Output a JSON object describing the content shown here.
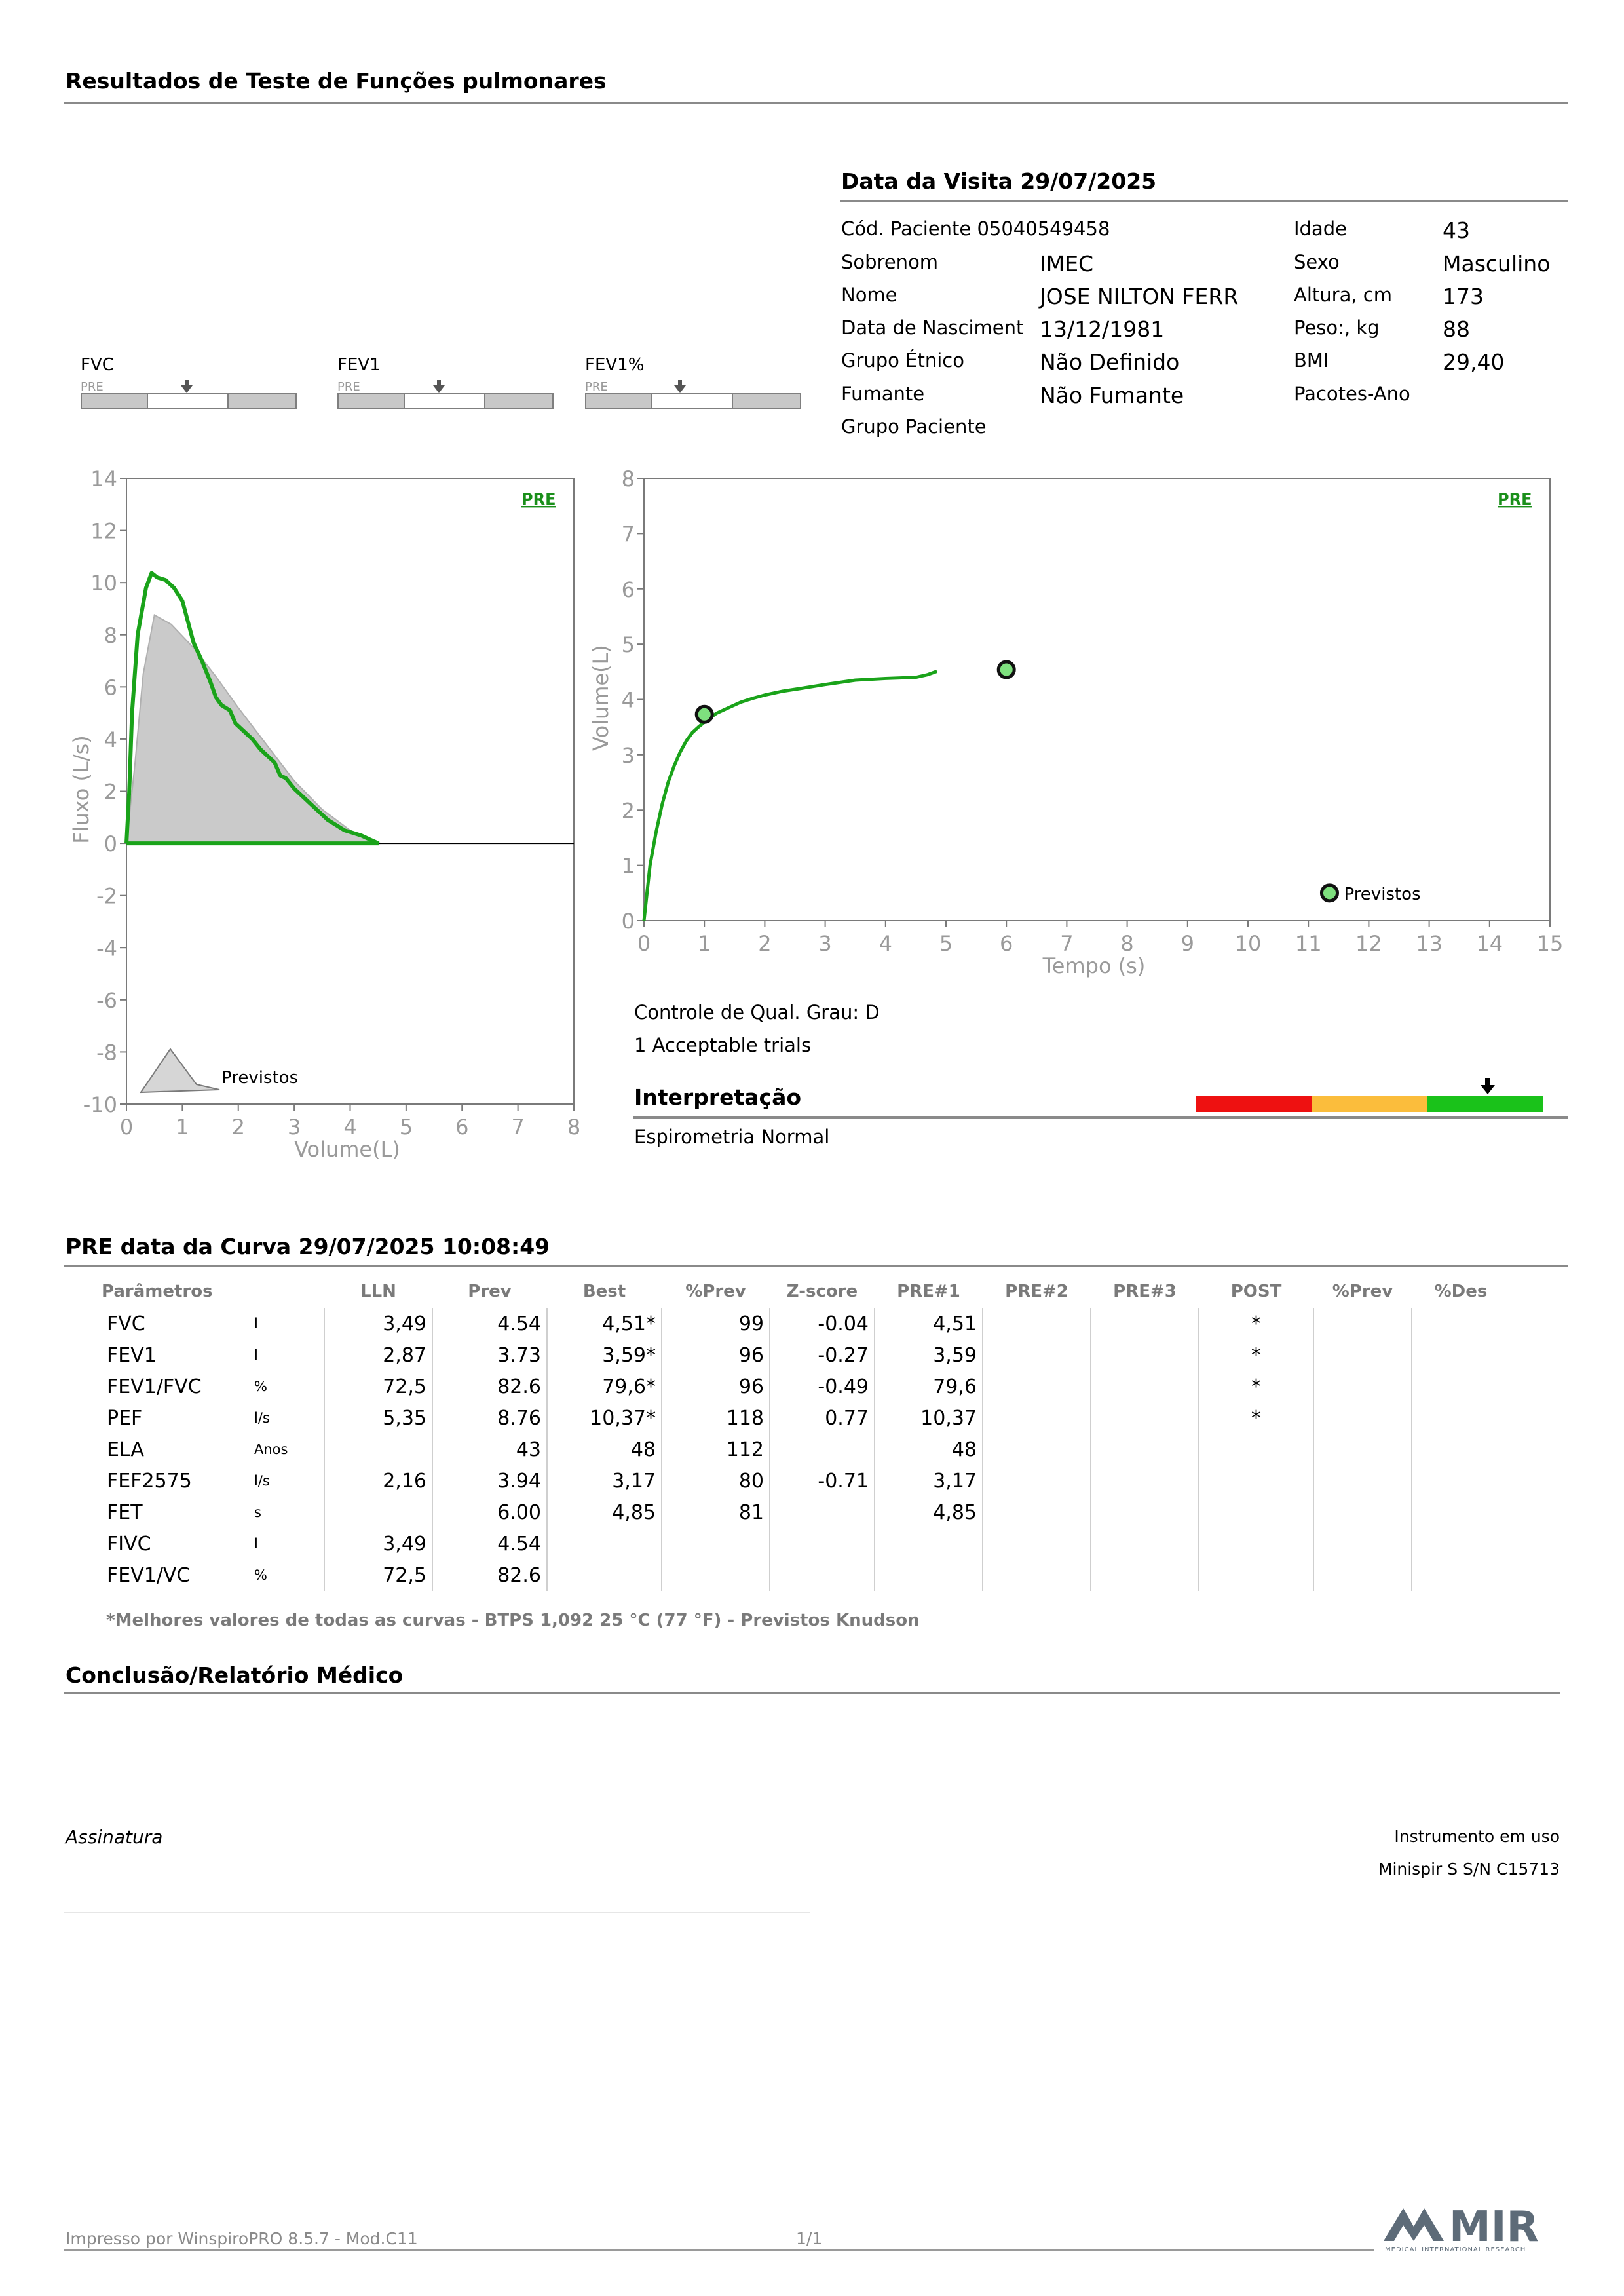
{
  "report": {
    "title": "Resultados de Teste de Funções pulmonares"
  },
  "visit": {
    "title": "Data da Visita 29/07/2025",
    "patient_code_label": "Cód. Paciente 05040549458",
    "surname_label": "Sobrenom",
    "surname": "IMEC",
    "name_label": "Nome",
    "name": "JOSE NILTON FERR",
    "birth_label": "Data de Nasciment",
    "birth": "13/12/1981",
    "ethnic_label": "Grupo Étnico",
    "ethnic": "Não Definido",
    "smoker_label": "Fumante",
    "smoker": "Não Fumante",
    "patient_group_label": "Grupo Paciente",
    "age_label": "Idade",
    "age": "43",
    "sex_label": "Sexo",
    "sex": "Masculino",
    "height_label": "Altura, cm",
    "height": "173",
    "weight_label": "Peso:, kg",
    "weight": "88",
    "bmi_label": "BMI",
    "bmi": "29,40",
    "packs_label": "Pacotes-Ano"
  },
  "indicators": [
    {
      "label": "FVC",
      "tag": "PRE",
      "marker": 0.49
    },
    {
      "label": "FEV1",
      "tag": "PRE",
      "marker": 0.47
    },
    {
      "label": "FEV1%",
      "tag": "PRE",
      "marker": 0.44
    }
  ],
  "chart_data": [
    {
      "type": "line",
      "tag": "PRE",
      "ylabel": "Fluxo (L/s)",
      "xlabel": "Volume(L)",
      "xlim": [
        0,
        8
      ],
      "ylim": [
        -10,
        14
      ],
      "xticks": [
        "0",
        "1",
        "2",
        "3",
        "4",
        "5",
        "6",
        "7",
        "8"
      ],
      "yticks": [
        "14",
        "12",
        "10",
        "8",
        "6",
        "4",
        "2",
        "0",
        "-2",
        "-4",
        "-6",
        "-8",
        "-10"
      ],
      "legend": "Previstos",
      "series": [
        {
          "role": "predicted-area",
          "points": [
            [
              0,
              0
            ],
            [
              0.15,
              3
            ],
            [
              0.3,
              6.5
            ],
            [
              0.5,
              8.76
            ],
            [
              0.8,
              8.4
            ],
            [
              1.2,
              7.5
            ],
            [
              1.6,
              6.4
            ],
            [
              2.0,
              5.2
            ],
            [
              2.5,
              3.8
            ],
            [
              3.0,
              2.4
            ],
            [
              3.5,
              1.3
            ],
            [
              4.0,
              0.5
            ],
            [
              4.54,
              0
            ]
          ]
        },
        {
          "role": "measured",
          "color": "#1aa31a",
          "points": [
            [
              0,
              0
            ],
            [
              0.05,
              2
            ],
            [
              0.1,
              5
            ],
            [
              0.2,
              8
            ],
            [
              0.35,
              9.8
            ],
            [
              0.45,
              10.37
            ],
            [
              0.55,
              10.2
            ],
            [
              0.7,
              10.1
            ],
            [
              0.85,
              9.8
            ],
            [
              1.0,
              9.3
            ],
            [
              1.1,
              8.5
            ],
            [
              1.2,
              7.7
            ],
            [
              1.35,
              7.0
            ],
            [
              1.5,
              6.2
            ],
            [
              1.6,
              5.6
            ],
            [
              1.7,
              5.3
            ],
            [
              1.85,
              5.1
            ],
            [
              1.95,
              4.6
            ],
            [
              2.1,
              4.3
            ],
            [
              2.25,
              4.0
            ],
            [
              2.4,
              3.6
            ],
            [
              2.55,
              3.3
            ],
            [
              2.65,
              3.1
            ],
            [
              2.75,
              2.6
            ],
            [
              2.85,
              2.5
            ],
            [
              3.0,
              2.1
            ],
            [
              3.15,
              1.8
            ],
            [
              3.3,
              1.5
            ],
            [
              3.45,
              1.2
            ],
            [
              3.6,
              0.9
            ],
            [
              3.75,
              0.7
            ],
            [
              3.9,
              0.5
            ],
            [
              4.05,
              0.4
            ],
            [
              4.2,
              0.3
            ],
            [
              4.35,
              0.15
            ],
            [
              4.51,
              0
            ]
          ]
        }
      ]
    },
    {
      "type": "line",
      "tag": "PRE",
      "ylabel": "Volume(L)",
      "xlabel": "Tempo (s)",
      "xlim": [
        0,
        15
      ],
      "ylim": [
        0,
        8
      ],
      "xticks": [
        "0",
        "1",
        "2",
        "3",
        "4",
        "5",
        "6",
        "7",
        "8",
        "9",
        "10",
        "11",
        "12",
        "13",
        "14",
        "15"
      ],
      "yticks": [
        "8",
        "7",
        "6",
        "5",
        "4",
        "3",
        "2",
        "1",
        "0"
      ],
      "legend": "Previstos",
      "series": [
        {
          "role": "measured",
          "color": "#1aa31a",
          "points": [
            [
              0,
              0
            ],
            [
              0.05,
              0.5
            ],
            [
              0.1,
              1.0
            ],
            [
              0.2,
              1.6
            ],
            [
              0.3,
              2.1
            ],
            [
              0.4,
              2.5
            ],
            [
              0.5,
              2.8
            ],
            [
              0.6,
              3.05
            ],
            [
              0.7,
              3.25
            ],
            [
              0.8,
              3.4
            ],
            [
              0.9,
              3.5
            ],
            [
              1.0,
              3.59
            ],
            [
              1.2,
              3.75
            ],
            [
              1.4,
              3.85
            ],
            [
              1.6,
              3.95
            ],
            [
              1.8,
              4.02
            ],
            [
              2.0,
              4.08
            ],
            [
              2.3,
              4.15
            ],
            [
              2.6,
              4.2
            ],
            [
              3.0,
              4.27
            ],
            [
              3.5,
              4.35
            ],
            [
              4.0,
              4.38
            ],
            [
              4.5,
              4.4
            ],
            [
              4.7,
              4.45
            ],
            [
              4.85,
              4.51
            ]
          ]
        },
        {
          "role": "predicted-point",
          "x": 1.0,
          "y": 3.73
        },
        {
          "role": "predicted-point",
          "x": 6.0,
          "y": 4.54
        },
        {
          "role": "legend-point",
          "x": 11.35,
          "y": 0.5
        }
      ]
    }
  ],
  "quality": {
    "grade": "Controle de Qual. Grau: D",
    "trials": "1 Acceptable trials"
  },
  "interpretation": {
    "title": "Interpretação",
    "text": "Espirometria Normal",
    "colors": [
      "#ee1111",
      "#fbbd3c",
      "#1ac21a"
    ],
    "marker": 0.84
  },
  "curve": {
    "title": "PRE data da Curva 29/07/2025   10:08:49"
  },
  "table": {
    "headers": [
      "Parâmetros",
      "",
      "LLN",
      "Prev",
      "Best",
      "%Prev",
      "Z-score",
      "PRE#1",
      "PRE#2",
      "PRE#3",
      "POST",
      "%Prev",
      "%Des"
    ],
    "rows": [
      [
        "FVC",
        "l",
        "3,49",
        "4.54",
        "4,51*",
        "99",
        "-0.04",
        "4,51",
        "",
        "",
        "*",
        "",
        ""
      ],
      [
        "FEV1",
        "l",
        "2,87",
        "3.73",
        "3,59*",
        "96",
        "-0.27",
        "3,59",
        "",
        "",
        "*",
        "",
        ""
      ],
      [
        "FEV1/FVC",
        "%",
        "72,5",
        "82.6",
        "79,6*",
        "96",
        "-0.49",
        "79,6",
        "",
        "",
        "*",
        "",
        ""
      ],
      [
        "PEF",
        "l/s",
        "5,35",
        "8.76",
        "10,37*",
        "118",
        "0.77",
        "10,37",
        "",
        "",
        "*",
        "",
        ""
      ],
      [
        "ELA",
        "Anos",
        "",
        "43",
        "48",
        "112",
        "",
        "48",
        "",
        "",
        "",
        "",
        ""
      ],
      [
        "FEF2575",
        "l/s",
        "2,16",
        "3.94",
        "3,17",
        "80",
        "-0.71",
        "3,17",
        "",
        "",
        "",
        "",
        ""
      ],
      [
        "FET",
        "s",
        "",
        "6.00",
        "4,85",
        "81",
        "",
        "4,85",
        "",
        "",
        "",
        "",
        ""
      ],
      [
        "FIVC",
        "l",
        "3,49",
        "4.54",
        "",
        "",
        "",
        "",
        "",
        "",
        "",
        "",
        ""
      ],
      [
        "FEV1/VC",
        "%",
        "72,5",
        "82.6",
        "",
        "",
        "",
        "",
        "",
        "",
        "",
        "",
        ""
      ]
    ],
    "footnote": "*Melhores valores de todas as curvas - BTPS  1,092  25 °C  (77 °F) - Previstos Knudson"
  },
  "conclusion": {
    "title": "Conclusão/Relatório Médico",
    "signature": "Assinatura",
    "instrument_label": "Instrumento em uso",
    "instrument": "Minispir S S/N C15713"
  },
  "footer": {
    "printed_by": "Impresso por WinspiroPRO  8.5.7 - Mod.C11",
    "page": "1/1",
    "logo_text": "MIR",
    "logo_sub": "MEDICAL INTERNATIONAL RESEARCH",
    "logo_color": "#5d6b78"
  }
}
